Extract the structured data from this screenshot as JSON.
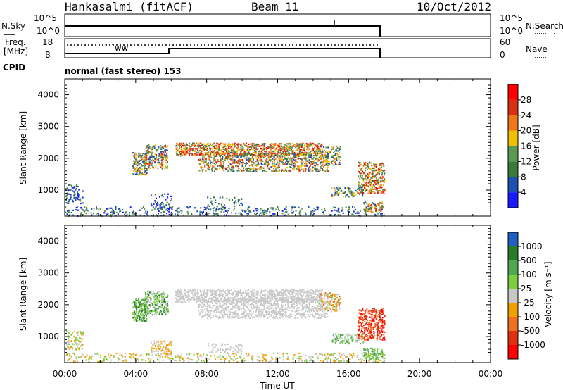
{
  "header": {
    "station": "Hankasalmi (fitACF)",
    "beam": "Beam 11",
    "date": "10/Oct/2012",
    "cpid_label": "CPID",
    "cpid_value": "normal (fast stereo) 153"
  },
  "noise_panel": {
    "left_label": "N.Sky",
    "right_label": "N.Search",
    "left_ticks": [
      "10^5",
      "10^0"
    ],
    "right_ticks": [
      "10^5",
      "10^0"
    ]
  },
  "freq_panel": {
    "left_label_1": "Freq.",
    "left_label_2": "[MHz]",
    "right_label": "Nave",
    "left_ticks": [
      "18",
      "8"
    ],
    "right_ticks": [
      "60",
      "0"
    ]
  },
  "colors": {
    "power_scale": [
      "#1a1aff",
      "#1c4fb0",
      "#3c7a3c",
      "#5a9a55",
      "#f0c000",
      "#f07818",
      "#d83010",
      "#ff0000"
    ],
    "velocity_scale": [
      "#2060c0",
      "#2a7a2a",
      "#50a850",
      "#7ccd40",
      "#c8c8c8",
      "#f0a000",
      "#f07020",
      "#e03010",
      "#ff0000"
    ]
  },
  "chart_data": [
    {
      "type": "heatmap",
      "name": "Power",
      "xlabel": "",
      "ylabel": "Slant Range [km]",
      "yticks": [
        "1000",
        "2000",
        "3000",
        "4000"
      ],
      "colorbar_label": "Power [dB]",
      "colorbar_ticks": [
        "4",
        "8",
        "12",
        "16",
        "20",
        "24",
        "28"
      ],
      "xlim": [
        0,
        24
      ],
      "ylim": [
        180,
        4500
      ]
    },
    {
      "type": "heatmap",
      "name": "Velocity",
      "xlabel": "Time UT",
      "ylabel": "Slant Range [km]",
      "xticks": [
        "00:00",
        "04:00",
        "08:00",
        "12:00",
        "16:00",
        "20:00",
        "00:00"
      ],
      "yticks": [
        "1000",
        "2000",
        "3000",
        "4000"
      ],
      "colorbar_label": "Velocity [m s⁻¹]",
      "colorbar_ticks": [
        "1000",
        "500",
        "100",
        "25",
        "-25",
        "-100",
        "-500",
        "-1000"
      ],
      "xlim": [
        0,
        24
      ],
      "ylim": [
        180,
        4500
      ]
    }
  ]
}
